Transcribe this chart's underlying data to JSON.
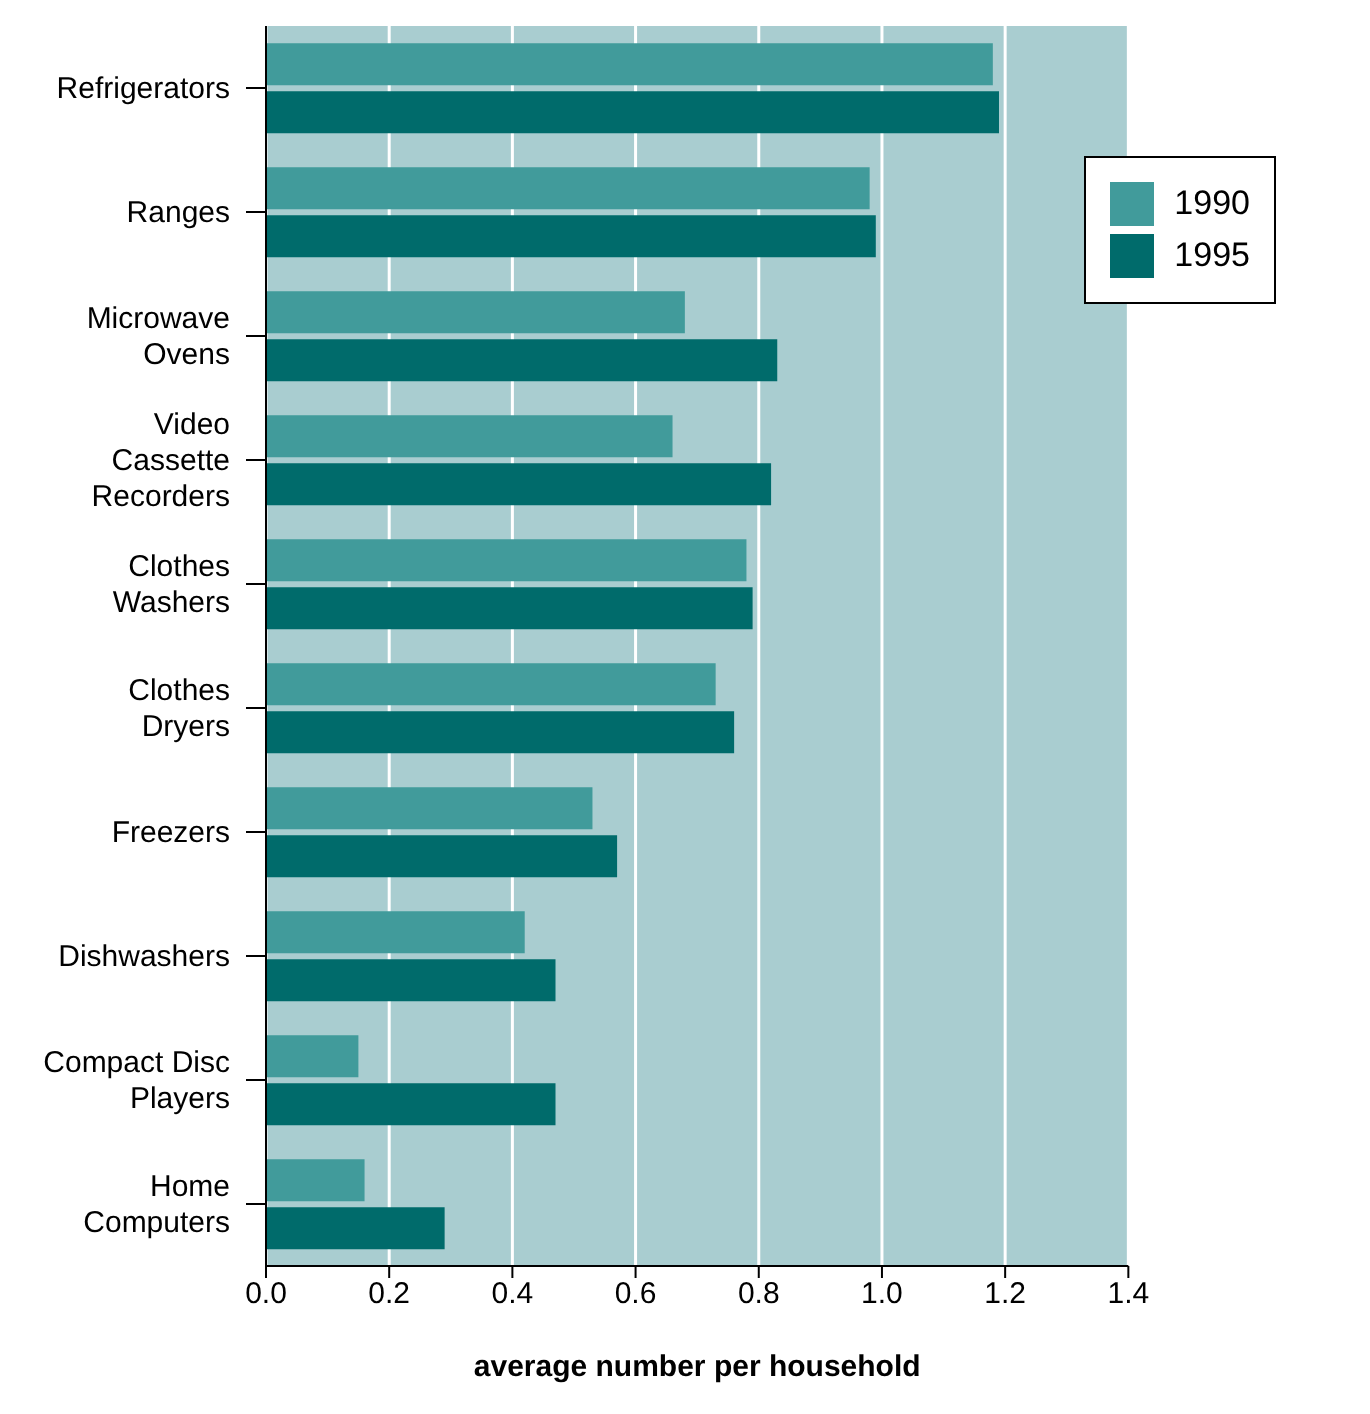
{
  "chart_data": {
    "type": "bar",
    "orientation": "horizontal",
    "xlabel": "average number per household",
    "categories": [
      "Refrigerators",
      "Ranges",
      "Microwave Ovens",
      "Video Cassette Recorders",
      "Clothes Washers",
      "Clothes Dryers",
      "Freezers",
      "Dishwashers",
      "Compact Disc Players",
      "Home Computers"
    ],
    "series": [
      {
        "name": "1990",
        "color": "#419b9b",
        "values": [
          1.18,
          0.98,
          0.68,
          0.66,
          0.78,
          0.73,
          0.53,
          0.42,
          0.15,
          0.16
        ]
      },
      {
        "name": "1995",
        "color": "#006b6b",
        "values": [
          1.19,
          0.99,
          0.83,
          0.82,
          0.79,
          0.76,
          0.57,
          0.47,
          0.47,
          0.29
        ]
      }
    ],
    "xlim": [
      0,
      1.4
    ],
    "xticks": [
      {
        "value": 0,
        "label": "0.0"
      },
      {
        "value": 0.2,
        "label": "0.2"
      },
      {
        "value": 0.4,
        "label": "0.4"
      },
      {
        "value": 0.6,
        "label": "0.6"
      },
      {
        "value": 0.8,
        "label": "0.8"
      },
      {
        "value": 1,
        "label": "1.0"
      },
      {
        "value": 1.2,
        "label": "1.2"
      },
      {
        "value": 1.4,
        "label": "1.4"
      }
    ],
    "grid": "x",
    "legend": "top right"
  }
}
